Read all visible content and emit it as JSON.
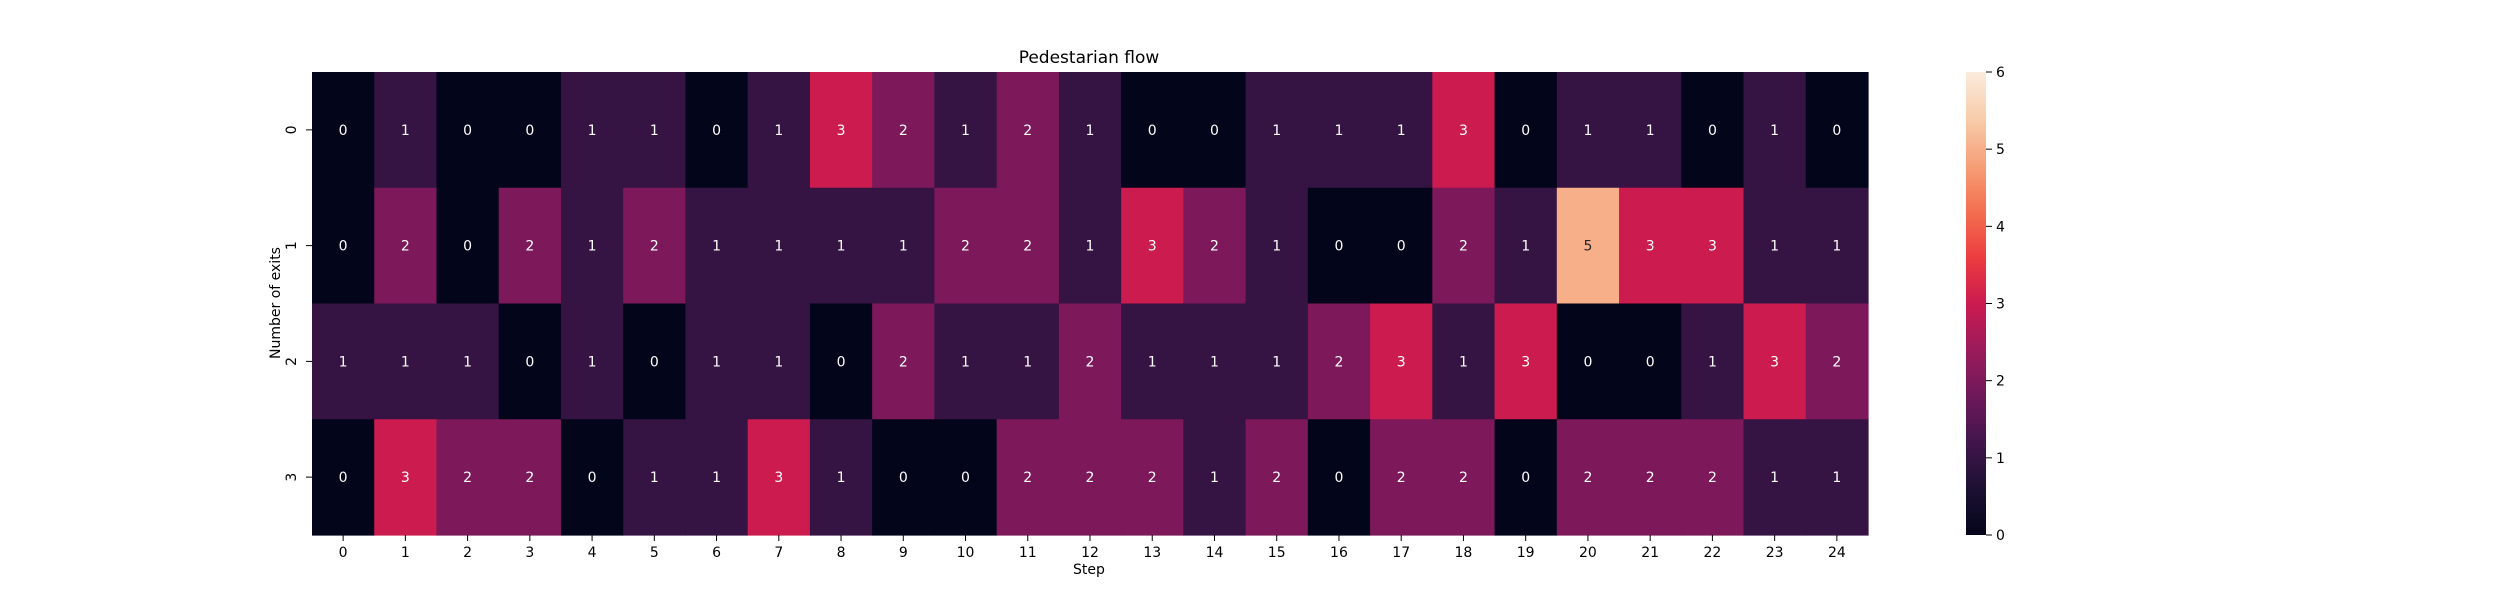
{
  "chart_data": {
    "type": "heatmap",
    "title": "Pedestarian flow",
    "xlabel": "Step",
    "ylabel": "Number of exits",
    "x": [
      "0",
      "1",
      "2",
      "3",
      "4",
      "5",
      "6",
      "7",
      "8",
      "9",
      "10",
      "11",
      "12",
      "13",
      "14",
      "15",
      "16",
      "17",
      "18",
      "19",
      "20",
      "21",
      "22",
      "23",
      "24"
    ],
    "y": [
      "0",
      "1",
      "2",
      "3"
    ],
    "values": [
      [
        0,
        1,
        0,
        0,
        1,
        1,
        0,
        1,
        3,
        2,
        1,
        2,
        1,
        0,
        0,
        1,
        1,
        1,
        3,
        0,
        1,
        1,
        0,
        1,
        0
      ],
      [
        0,
        2,
        0,
        2,
        1,
        2,
        1,
        1,
        1,
        1,
        2,
        2,
        1,
        3,
        2,
        1,
        0,
        0,
        2,
        1,
        5,
        3,
        3,
        1,
        1
      ],
      [
        1,
        1,
        1,
        0,
        1,
        0,
        1,
        1,
        0,
        2,
        1,
        1,
        2,
        1,
        1,
        1,
        2,
        3,
        1,
        3,
        0,
        0,
        1,
        3,
        2
      ],
      [
        0,
        3,
        2,
        2,
        0,
        1,
        1,
        3,
        1,
        0,
        0,
        2,
        2,
        2,
        1,
        2,
        0,
        2,
        2,
        0,
        2,
        2,
        2,
        1,
        1
      ]
    ],
    "colorbar": {
      "min": 0,
      "max": 6,
      "ticks": [
        "0",
        "1",
        "2",
        "3",
        "4",
        "5",
        "6"
      ]
    },
    "colormap": "rocket",
    "annotation_colors": {
      "dark_cell_text": "#ffffff",
      "light_cell_text": "#262626"
    }
  }
}
